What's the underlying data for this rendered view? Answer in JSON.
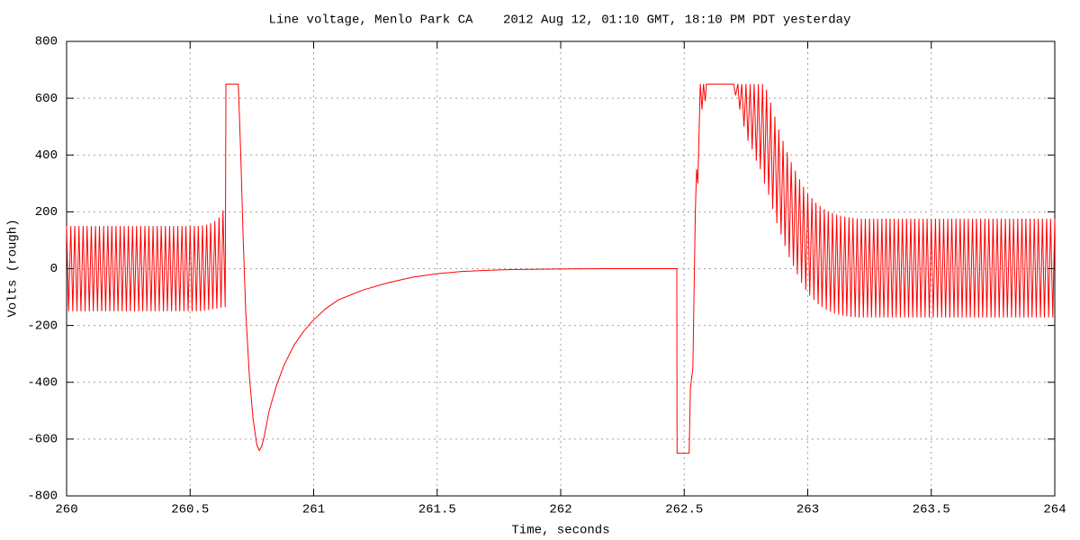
{
  "chart_data": {
    "type": "line",
    "title": "Line voltage, Menlo Park CA    2012 Aug 12, 01:10 GMT, 18:10 PM PDT yesterday",
    "x_label": "Time, seconds",
    "y_label": "Volts (rough)",
    "color": "#ff0000",
    "grid": true,
    "xlim": [
      260,
      264
    ],
    "ylim": [
      -800,
      800
    ],
    "xticks": [
      260,
      260.5,
      261,
      261.5,
      262,
      262.5,
      263,
      263.5,
      264
    ],
    "yticks": [
      -800,
      -600,
      -400,
      -200,
      0,
      200,
      400,
      600,
      800
    ],
    "x": [
      260,
      260.008,
      260.017,
      260.025,
      260.033,
      260.042,
      260.05,
      260.058,
      260.067,
      260.075,
      260.083,
      260.092,
      260.1,
      260.108,
      260.117,
      260.125,
      260.133,
      260.142,
      260.15,
      260.158,
      260.167,
      260.175,
      260.183,
      260.192,
      260.2,
      260.208,
      260.217,
      260.225,
      260.233,
      260.242,
      260.25,
      260.258,
      260.267,
      260.275,
      260.283,
      260.292,
      260.3,
      260.308,
      260.317,
      260.325,
      260.333,
      260.342,
      260.35,
      260.358,
      260.367,
      260.375,
      260.383,
      260.392,
      260.4,
      260.408,
      260.417,
      260.425,
      260.433,
      260.442,
      260.45,
      260.458,
      260.467,
      260.475,
      260.483,
      260.492,
      260.5,
      260.508,
      260.517,
      260.525,
      260.533,
      260.542,
      260.55,
      260.558,
      260.567,
      260.575,
      260.583,
      260.592,
      260.6,
      260.608,
      260.617,
      260.625,
      260.633,
      260.642,
      260.645,
      260.695,
      260.705,
      260.715,
      260.725,
      260.74,
      260.755,
      260.77,
      260.78,
      260.79,
      260.8,
      260.82,
      260.85,
      260.88,
      260.92,
      260.96,
      261,
      261.05,
      261.1,
      261.2,
      261.3,
      261.4,
      261.5,
      261.6,
      261.7,
      261.8,
      262,
      262.2,
      262.47,
      262.471,
      262.52,
      262.525,
      262.535,
      262.545,
      262.55,
      262.555,
      262.565,
      262.572,
      262.578,
      262.585,
      262.59,
      262.7,
      262.708,
      262.717,
      262.725,
      262.733,
      262.742,
      262.75,
      262.758,
      262.767,
      262.775,
      262.783,
      262.792,
      262.8,
      262.808,
      262.817,
      262.825,
      262.833,
      262.842,
      262.85,
      262.858,
      262.867,
      262.875,
      262.883,
      262.892,
      262.9,
      262.908,
      262.917,
      262.925,
      262.933,
      262.942,
      262.95,
      262.958,
      262.967,
      262.975,
      262.983,
      262.992,
      263,
      263.008,
      263.017,
      263.025,
      263.033,
      263.042,
      263.05,
      263.058,
      263.067,
      263.075,
      263.083,
      263.092,
      263.1,
      263.108,
      263.117,
      263.125,
      263.133,
      263.142,
      263.15,
      263.158,
      263.167,
      263.175,
      263.183,
      263.192,
      263.2,
      263.208,
      263.217,
      263.225,
      263.233,
      263.242,
      263.25,
      263.258,
      263.267,
      263.275,
      263.283,
      263.292,
      263.3,
      263.308,
      263.317,
      263.325,
      263.333,
      263.342,
      263.35,
      263.358,
      263.367,
      263.375,
      263.383,
      263.392,
      263.4,
      263.408,
      263.417,
      263.425,
      263.433,
      263.442,
      263.45,
      263.458,
      263.467,
      263.475,
      263.483,
      263.492,
      263.5,
      263.508,
      263.517,
      263.525,
      263.533,
      263.542,
      263.55,
      263.558,
      263.567,
      263.575,
      263.583,
      263.592,
      263.6,
      263.608,
      263.617,
      263.625,
      263.633,
      263.642,
      263.65,
      263.658,
      263.667,
      263.675,
      263.683,
      263.692,
      263.7,
      263.708,
      263.717,
      263.725,
      263.733,
      263.742,
      263.75,
      263.758,
      263.767,
      263.775,
      263.783,
      263.792,
      263.8,
      263.808,
      263.817,
      263.825,
      263.833,
      263.842,
      263.85,
      263.858,
      263.867,
      263.875,
      263.883,
      263.892,
      263.9,
      263.908,
      263.917,
      263.925,
      263.933,
      263.942,
      263.95,
      263.958,
      263.967,
      263.975,
      263.983,
      263.992,
      264
    ],
    "values": [
      150,
      -150,
      150,
      -150,
      150,
      -150,
      150,
      -150,
      150,
      -150,
      150,
      -150,
      150,
      -150,
      150,
      -150,
      150,
      -150,
      150,
      -150,
      150,
      -150,
      150,
      -150,
      150,
      -150,
      150,
      -150,
      150,
      -150,
      150,
      -150,
      150,
      -150,
      150,
      -150,
      150,
      -150,
      150,
      -150,
      150,
      -150,
      150,
      -150,
      150,
      -150,
      150,
      -150,
      150,
      -150,
      150,
      -150,
      150,
      -150,
      150,
      -150,
      150,
      -150,
      150,
      -150,
      150,
      -150,
      150,
      -150,
      150,
      -150,
      152,
      -148,
      155,
      -146,
      160,
      -143,
      168,
      -140,
      180,
      -137,
      205,
      -135,
      650,
      650,
      400,
      100,
      -150,
      -380,
      -530,
      -620,
      -640,
      -625,
      -590,
      -500,
      -410,
      -340,
      -270,
      -220,
      -180,
      -140,
      -110,
      -75,
      -50,
      -30,
      -18,
      -10,
      -6,
      -3,
      -1,
      0,
      0,
      -650,
      -650,
      -420,
      -350,
      200,
      350,
      300,
      650,
      560,
      650,
      590,
      650,
      650,
      610,
      650,
      560,
      650,
      500,
      650,
      450,
      650,
      420,
      650,
      380,
      650,
      350,
      650,
      300,
      630,
      260,
      585,
      210,
      535,
      160,
      490,
      120,
      450,
      80,
      410,
      40,
      375,
      10,
      345,
      -20,
      315,
      -50,
      288,
      -75,
      265,
      -95,
      248,
      -110,
      232,
      -125,
      220,
      -135,
      210,
      -145,
      202,
      -152,
      196,
      -158,
      190,
      -162,
      186,
      -165,
      183,
      -168,
      181,
      -170,
      179,
      -171,
      176,
      -172,
      176,
      -172,
      176,
      -172,
      176,
      -172,
      176,
      -172,
      176,
      -172,
      176,
      -172,
      176,
      -172,
      176,
      -172,
      176,
      -172,
      176,
      -172,
      176,
      -172,
      176,
      -172,
      176,
      -172,
      176,
      -172,
      176,
      -172,
      176,
      -172,
      176,
      -172,
      176,
      -172,
      176,
      -172,
      176,
      -172,
      176,
      -172,
      176,
      -172,
      176,
      -172,
      176,
      -172,
      176,
      -172,
      176,
      -172,
      176,
      -172,
      176,
      -172,
      176,
      -172,
      176,
      -172,
      176,
      -172,
      176,
      -172,
      176,
      -172,
      176,
      -172,
      176,
      -172,
      176,
      -172,
      176,
      -172,
      176,
      -172,
      176,
      -172,
      176,
      -172,
      176,
      -172,
      176,
      -172,
      176,
      -172,
      176,
      -172,
      176,
      -172,
      176,
      -172,
      176,
      -172,
      176
    ]
  }
}
